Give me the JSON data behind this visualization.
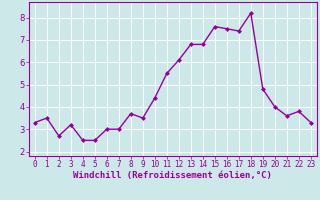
{
  "x": [
    0,
    1,
    2,
    3,
    4,
    5,
    6,
    7,
    8,
    9,
    10,
    11,
    12,
    13,
    14,
    15,
    16,
    17,
    18,
    19,
    20,
    21,
    22,
    23
  ],
  "y": [
    3.3,
    3.5,
    2.7,
    3.2,
    2.5,
    2.5,
    3.0,
    3.0,
    3.7,
    3.5,
    4.4,
    5.5,
    6.1,
    6.8,
    6.8,
    7.6,
    7.5,
    7.4,
    8.2,
    4.8,
    4.0,
    3.6,
    3.8,
    3.3
  ],
  "line_color": "#990099",
  "marker": "D",
  "marker_size": 2.0,
  "bg_color": "#cce8e8",
  "grid_color": "#ffffff",
  "xlabel": "Windchill (Refroidissement éolien,°C)",
  "xlabel_color": "#990099",
  "xlabel_fontsize": 6.5,
  "ylabel_ticks": [
    2,
    3,
    4,
    5,
    6,
    7,
    8
  ],
  "xtick_labels": [
    "0",
    "1",
    "2",
    "3",
    "4",
    "5",
    "6",
    "7",
    "8",
    "9",
    "10",
    "11",
    "12",
    "13",
    "14",
    "15",
    "16",
    "17",
    "18",
    "19",
    "20",
    "21",
    "22",
    "23"
  ],
  "ylim": [
    1.8,
    8.7
  ],
  "xlim": [
    -0.5,
    23.5
  ],
  "tick_color": "#990099",
  "tick_fontsize": 5.5,
  "axis_bg_color": "#cce8e8",
  "border_color": "#990099",
  "linewidth": 1.0
}
